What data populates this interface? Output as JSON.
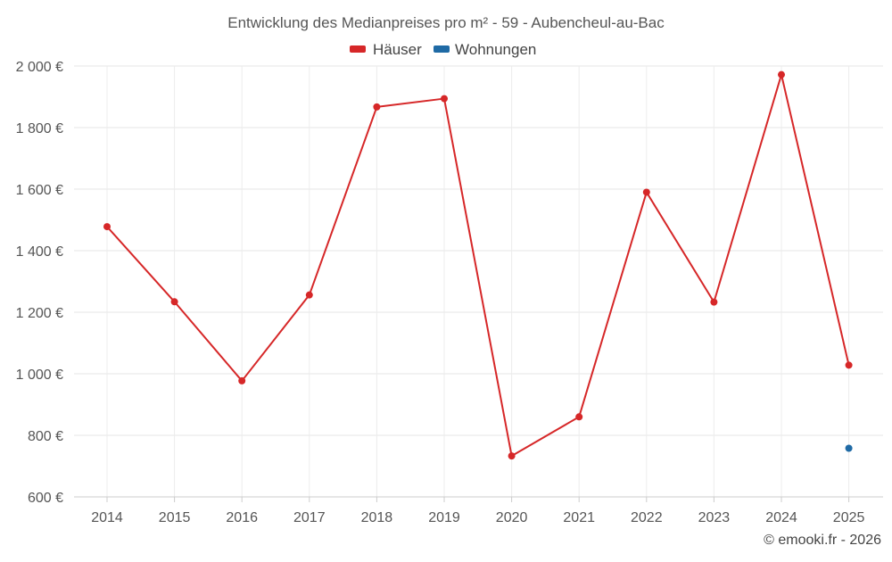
{
  "chart_data": {
    "type": "line",
    "title": "Entwicklung des Medianpreises pro m² - 59 - Aubencheul-au-Bac",
    "categories": [
      "2014",
      "2015",
      "2016",
      "2017",
      "2018",
      "2019",
      "2020",
      "2021",
      "2022",
      "2023",
      "2024",
      "2025"
    ],
    "series": [
      {
        "name": "Häuser",
        "color": "#d62728",
        "values": [
          1478,
          1234,
          977,
          1256,
          1867,
          1894,
          733,
          860,
          1590,
          1233,
          1972,
          1028
        ]
      },
      {
        "name": "Wohnungen",
        "color": "#1f6aa5",
        "values": [
          null,
          null,
          null,
          null,
          null,
          null,
          null,
          null,
          null,
          null,
          null,
          758
        ]
      }
    ],
    "y_ticks": [
      600,
      800,
      1000,
      1200,
      1400,
      1600,
      1800,
      2000
    ],
    "y_tick_labels": [
      "600 €",
      "800 €",
      "1 000 €",
      "1 200 €",
      "1 400 €",
      "1 600 €",
      "1 800 €",
      "2 000 €"
    ],
    "ylim": [
      600,
      2000
    ],
    "grid": true,
    "legend_position": "top-center"
  },
  "credit": "© emooki.fr - 2026"
}
